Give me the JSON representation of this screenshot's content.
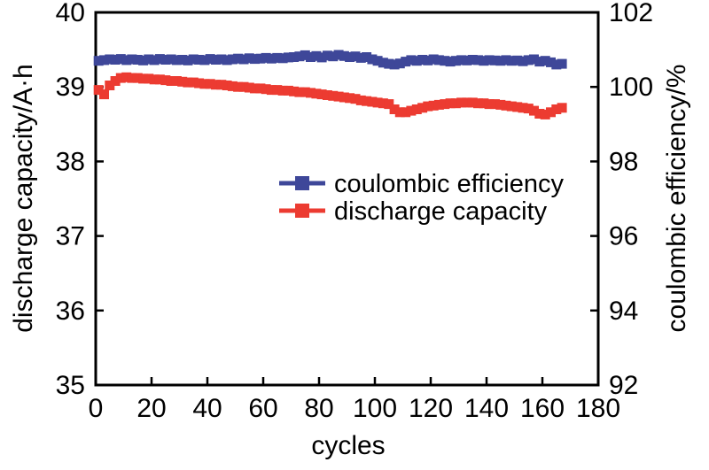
{
  "chart_data": {
    "type": "scatter",
    "title": "",
    "xlabel": "cycles",
    "ylabel_left": "discharge capacity/A·h",
    "ylabel_right": "coulombic efficiency/%",
    "xlim": [
      0,
      180
    ],
    "ylim_left": [
      35,
      40
    ],
    "ylim_right": [
      92,
      102
    ],
    "xticks": [
      0,
      20,
      40,
      60,
      80,
      100,
      120,
      140,
      160,
      180
    ],
    "yticks_left": [
      35,
      36,
      37,
      38,
      39,
      40
    ],
    "yticks_right": [
      92,
      94,
      96,
      98,
      100,
      102
    ],
    "grid": false,
    "legend_position": "center",
    "marker": "square",
    "x": [
      1,
      3,
      5,
      7,
      9,
      11,
      13,
      15,
      17,
      19,
      21,
      23,
      25,
      27,
      29,
      31,
      33,
      35,
      37,
      39,
      41,
      43,
      45,
      47,
      49,
      51,
      53,
      55,
      57,
      59,
      61,
      63,
      65,
      67,
      69,
      71,
      73,
      75,
      77,
      79,
      81,
      83,
      85,
      87,
      89,
      91,
      93,
      95,
      97,
      99,
      101,
      103,
      105,
      107,
      109,
      111,
      113,
      115,
      117,
      119,
      121,
      123,
      125,
      127,
      129,
      131,
      133,
      135,
      137,
      139,
      141,
      143,
      145,
      147,
      149,
      151,
      153,
      155,
      157,
      159,
      161,
      163,
      165,
      167
    ],
    "series": [
      {
        "name": "coulombic efficiency",
        "axis": "right",
        "color": "#3e4799",
        "values": [
          100.7,
          100.72,
          100.74,
          100.73,
          100.75,
          100.72,
          100.74,
          100.73,
          100.71,
          100.74,
          100.72,
          100.75,
          100.73,
          100.74,
          100.72,
          100.73,
          100.71,
          100.74,
          100.73,
          100.72,
          100.75,
          100.73,
          100.74,
          100.72,
          100.74,
          100.76,
          100.74,
          100.77,
          100.75,
          100.76,
          100.78,
          100.76,
          100.78,
          100.77,
          100.79,
          100.8,
          100.82,
          100.85,
          100.8,
          100.83,
          100.79,
          100.84,
          100.82,
          100.86,
          100.83,
          100.8,
          100.82,
          100.78,
          100.8,
          100.74,
          100.7,
          100.65,
          100.62,
          100.6,
          100.63,
          100.68,
          100.72,
          100.7,
          100.73,
          100.71,
          100.74,
          100.72,
          100.7,
          100.68,
          100.7,
          100.72,
          100.71,
          100.73,
          100.72,
          100.7,
          100.72,
          100.71,
          100.7,
          100.72,
          100.7,
          100.71,
          100.69,
          100.72,
          100.74,
          100.68,
          100.7,
          100.66,
          100.6,
          100.62
        ]
      },
      {
        "name": "discharge capacity",
        "axis": "left",
        "color": "#ec3b31",
        "values": [
          38.96,
          38.9,
          39.02,
          39.08,
          39.12,
          39.13,
          39.12,
          39.12,
          39.11,
          39.11,
          39.1,
          39.1,
          39.09,
          39.08,
          39.08,
          39.07,
          39.06,
          39.06,
          39.05,
          39.04,
          39.04,
          39.03,
          39.03,
          39.02,
          39.01,
          39.0,
          39.0,
          38.99,
          38.98,
          38.98,
          38.97,
          38.96,
          38.96,
          38.95,
          38.95,
          38.94,
          38.93,
          38.93,
          38.92,
          38.91,
          38.9,
          38.89,
          38.88,
          38.87,
          38.86,
          38.85,
          38.84,
          38.82,
          38.81,
          38.8,
          38.79,
          38.78,
          38.77,
          38.7,
          38.66,
          38.66,
          38.68,
          38.7,
          38.72,
          38.74,
          38.75,
          38.76,
          38.77,
          38.78,
          38.78,
          38.79,
          38.79,
          38.79,
          38.78,
          38.78,
          38.77,
          38.77,
          38.76,
          38.75,
          38.74,
          38.73,
          38.72,
          38.71,
          38.68,
          38.64,
          38.63,
          38.66,
          38.7,
          38.72
        ]
      }
    ]
  },
  "legend": {
    "items": [
      {
        "label": "coulombic efficiency"
      },
      {
        "label": "discharge capacity"
      }
    ]
  },
  "colors": {
    "axis": "#000000",
    "background": "#ffffff"
  }
}
